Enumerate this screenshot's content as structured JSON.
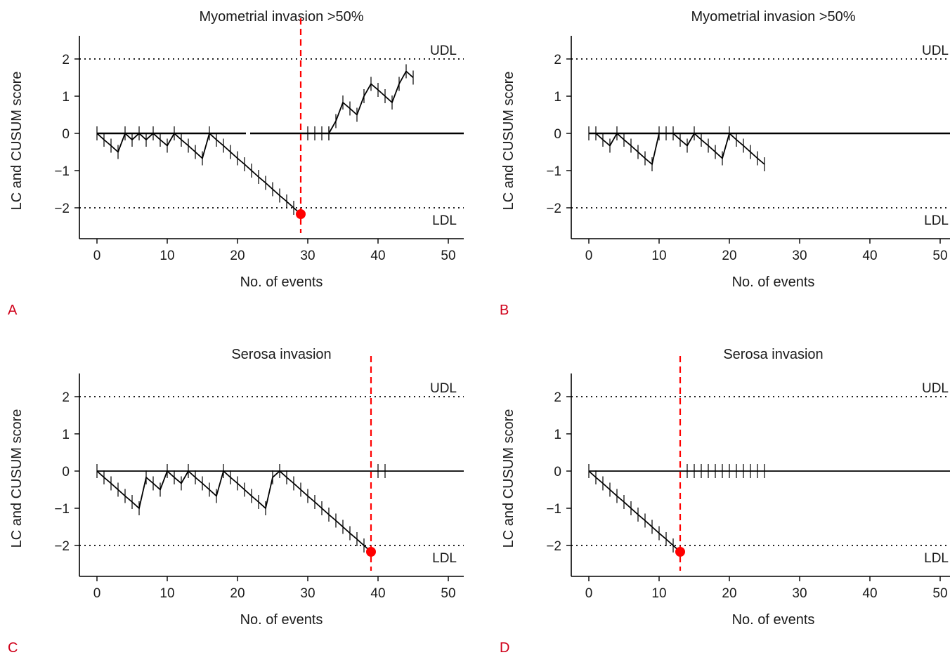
{
  "charts": [
    {
      "panel": "A",
      "title": "Myometrial invasion >50%",
      "cusum": [
        0,
        -0.17,
        -0.33,
        -0.5,
        0,
        -0.17,
        0,
        -0.17,
        0,
        -0.17,
        -0.33,
        0,
        -0.17,
        -0.33,
        -0.5,
        -0.67,
        0,
        -0.17,
        -0.33,
        -0.5,
        -0.67,
        -0.83,
        -1.0,
        -1.17,
        -1.33,
        -1.5,
        -1.67,
        -1.83,
        -2.0,
        -2.17
      ],
      "lc": [
        0.33,
        0.83,
        0.67,
        0.5,
        1.0,
        1.33,
        1.17,
        1.0,
        0.83,
        1.33,
        1.67,
        1.5
      ],
      "lc_start": 30,
      "lc_baseline": [
        30,
        31,
        32,
        33
      ],
      "boundary_event": 29,
      "boundary_value": -2.17,
      "has_vertical_line": true,
      "baseline_gap": [
        21.2,
        21.8
      ]
    },
    {
      "panel": "B",
      "title": "Myometrial invasion >50%",
      "cusum": [
        0,
        0,
        -0.17,
        -0.33,
        0,
        -0.17,
        -0.33,
        -0.5,
        -0.67,
        -0.83,
        0,
        0,
        0,
        -0.17,
        -0.33,
        0,
        -0.17,
        -0.33,
        -0.5,
        -0.67,
        0,
        -0.17,
        -0.33,
        -0.5,
        -0.67,
        -0.83
      ],
      "lc": [],
      "has_vertical_line": false
    },
    {
      "panel": "C",
      "title": "Serosa invasion",
      "cusum": [
        0,
        -0.17,
        -0.33,
        -0.5,
        -0.67,
        -0.83,
        -1.0,
        -0.17,
        -0.33,
        -0.5,
        0,
        -0.17,
        -0.33,
        0,
        -0.17,
        -0.33,
        -0.5,
        -0.67,
        0,
        -0.17,
        -0.33,
        -0.5,
        -0.67,
        -0.83,
        -1.0,
        -0.17,
        0,
        -0.17,
        -0.33,
        -0.5,
        -0.67,
        -0.83,
        -1.0,
        -1.17,
        -1.33,
        -1.5,
        -1.67,
        -1.83,
        -2.0,
        -2.17
      ],
      "lc": [],
      "lc_baseline": [
        40,
        41
      ],
      "boundary_event": 39,
      "boundary_value": -2.17,
      "has_vertical_line": true
    },
    {
      "panel": "D",
      "title": "Serosa invasion",
      "cusum": [
        0,
        -0.17,
        -0.33,
        -0.5,
        -0.67,
        -0.83,
        -1.0,
        -1.17,
        -1.33,
        -1.5,
        -1.67,
        -1.83,
        -2.0,
        -2.17
      ],
      "lc": [],
      "lc_baseline": [
        14,
        15,
        16,
        17,
        18,
        19,
        20,
        21,
        22,
        23,
        24,
        25
      ],
      "boundary_event": 13,
      "boundary_value": -2.17,
      "has_vertical_line": true
    }
  ],
  "axes": {
    "ylabel": "LC and CUSUM score",
    "xlabel": "No. of events",
    "xticks": [
      0,
      10,
      20,
      30,
      40,
      50
    ],
    "yticks": [
      2,
      1,
      0,
      -1,
      -2
    ],
    "ytick_labels": [
      "2",
      "1",
      "0",
      "−1",
      "−2"
    ],
    "xlim": [
      -2.5,
      52
    ],
    "ylim": [
      -2.75,
      2.65
    ]
  },
  "limits": {
    "upper_label": "UDL",
    "lower_label": "LDL",
    "upper": 2,
    "lower": -2
  },
  "colors": {
    "boundary": "#ff0000",
    "line": "#000000",
    "panel_letter": "#d0021b"
  },
  "chart_data": [
    {
      "type": "line",
      "panel": "A",
      "title": "Myometrial invasion >50%",
      "xlabel": "No. of events",
      "ylabel": "LC and CUSUM score",
      "xlim": [
        -2.5,
        52
      ],
      "ylim": [
        -2.75,
        2.65
      ],
      "reference_lines": {
        "UDL": 2,
        "LDL": -2
      },
      "series": [
        {
          "x": [
            0,
            1,
            2,
            3,
            4,
            5,
            6,
            7,
            8,
            9,
            10,
            11,
            12,
            13,
            14,
            15,
            16,
            17,
            18,
            19,
            20,
            21,
            22,
            23,
            24,
            25,
            26,
            27,
            28,
            29
          ],
          "values": [
            0,
            -0.17,
            -0.33,
            -0.5,
            0,
            -0.17,
            0,
            -0.17,
            0,
            -0.17,
            -0.33,
            0,
            -0.17,
            -0.33,
            -0.5,
            -0.67,
            0,
            -0.17,
            -0.33,
            -0.5,
            -0.67,
            -0.83,
            -1.0,
            -1.17,
            -1.33,
            -1.5,
            -1.67,
            -1.83,
            -2.0,
            -2.17
          ]
        },
        {
          "x": [
            30,
            31,
            32,
            33,
            34,
            35,
            36,
            37,
            38,
            39,
            40,
            41,
            42
          ],
          "values": [
            0,
            0,
            0,
            0,
            0.33,
            0.83,
            0.67,
            0.5,
            1.0,
            1.33,
            1.17,
            1.0,
            0.83
          ]
        }
      ],
      "boundary_crossing": {
        "event": 29,
        "value": -2.17
      }
    },
    {
      "type": "line",
      "panel": "B",
      "title": "Myometrial invasion >50%",
      "xlabel": "No. of events",
      "ylabel": "LC and CUSUM score",
      "xlim": [
        -2.5,
        52
      ],
      "ylim": [
        -2.75,
        2.65
      ],
      "reference_lines": {
        "UDL": 2,
        "LDL": -2
      },
      "series": [
        {
          "x": [
            0,
            1,
            2,
            3,
            4,
            5,
            6,
            7,
            8,
            9,
            10,
            11,
            12,
            13,
            14,
            15,
            16,
            17,
            18,
            19,
            20,
            21,
            22,
            23,
            24,
            25
          ],
          "values": [
            0,
            0,
            -0.17,
            -0.33,
            0,
            -0.17,
            -0.33,
            -0.5,
            -0.67,
            -0.83,
            0,
            0,
            0,
            -0.17,
            -0.33,
            0,
            -0.17,
            -0.33,
            -0.5,
            -0.67,
            0,
            -0.17,
            -0.33,
            -0.5,
            -0.67,
            -0.83
          ]
        }
      ]
    },
    {
      "type": "line",
      "panel": "C",
      "title": "Serosa invasion",
      "xlabel": "No. of events",
      "ylabel": "LC and CUSUM score",
      "xlim": [
        -2.5,
        52
      ],
      "ylim": [
        -2.75,
        2.65
      ],
      "reference_lines": {
        "UDL": 2,
        "LDL": -2
      },
      "series": [
        {
          "x": [
            0,
            1,
            2,
            3,
            4,
            5,
            6,
            7,
            8,
            9,
            10,
            11,
            12,
            13,
            14,
            15,
            16,
            17,
            18,
            19,
            20,
            21,
            22,
            23,
            24,
            25,
            26,
            27,
            28,
            29,
            30,
            31,
            32,
            33,
            34,
            35,
            36,
            37,
            38,
            39
          ],
          "values": [
            0,
            -0.17,
            -0.33,
            -0.5,
            -0.67,
            -0.83,
            -1.0,
            -0.17,
            -0.33,
            -0.5,
            0,
            -0.17,
            -0.33,
            0,
            -0.17,
            -0.33,
            -0.5,
            -0.67,
            0,
            -0.17,
            -0.33,
            -0.5,
            -0.67,
            -0.83,
            -1.0,
            -0.17,
            0,
            -0.17,
            -0.33,
            -0.5,
            -0.67,
            -0.83,
            -1.0,
            -1.17,
            -1.33,
            -1.5,
            -1.67,
            -1.83,
            -2.0,
            -2.17
          ]
        }
      ],
      "boundary_crossing": {
        "event": 39,
        "value": -2.17
      }
    },
    {
      "type": "line",
      "panel": "D",
      "title": "Serosa invasion",
      "xlabel": "No. of events",
      "ylabel": "LC and CUSUM score",
      "xlim": [
        -2.5,
        52
      ],
      "ylim": [
        -2.75,
        2.65
      ],
      "reference_lines": {
        "UDL": 2,
        "LDL": -2
      },
      "series": [
        {
          "x": [
            0,
            1,
            2,
            3,
            4,
            5,
            6,
            7,
            8,
            9,
            10,
            11,
            12,
            13
          ],
          "values": [
            0,
            -0.17,
            -0.33,
            -0.5,
            -0.67,
            -0.83,
            -1.0,
            -1.17,
            -1.33,
            -1.5,
            -1.67,
            -1.83,
            -2.0,
            -2.17
          ]
        }
      ],
      "boundary_crossing": {
        "event": 13,
        "value": -2.17
      }
    }
  ]
}
